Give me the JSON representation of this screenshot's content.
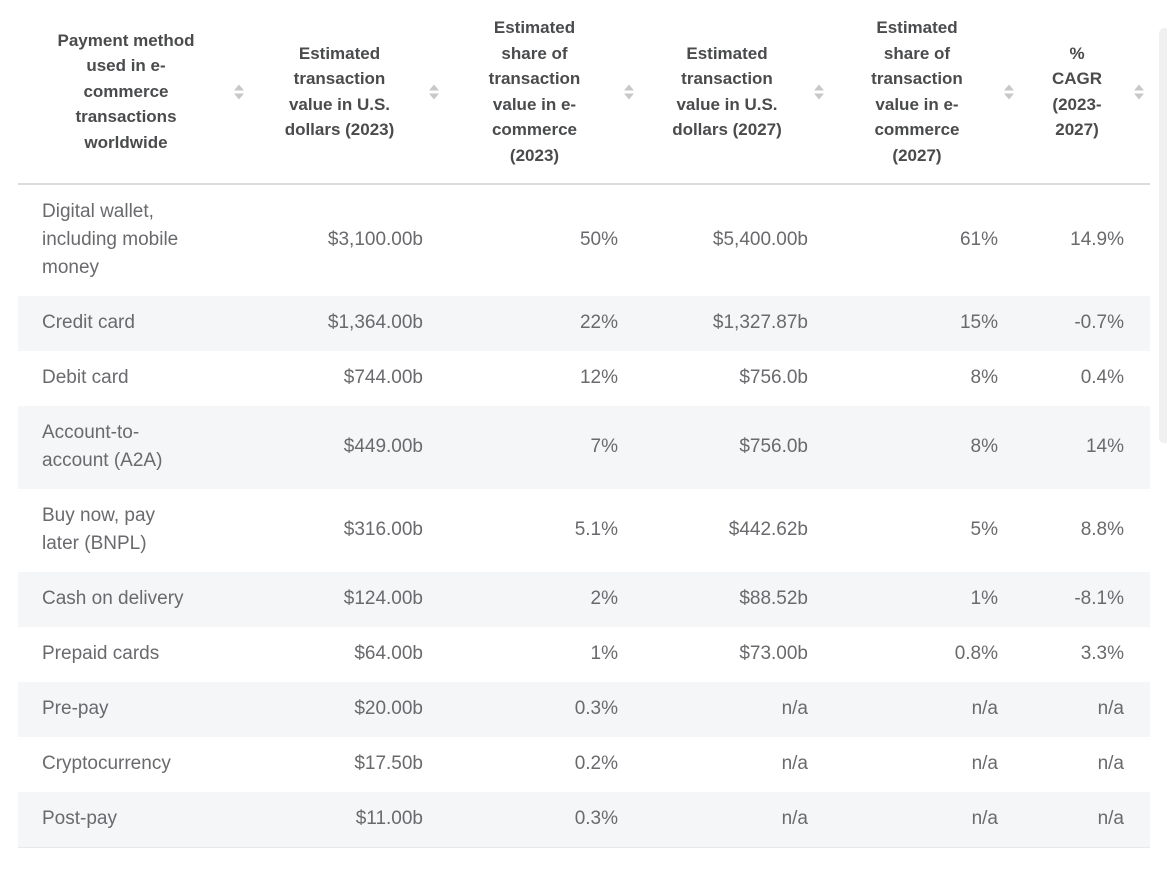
{
  "table": {
    "columns": [
      {
        "label": "Payment method\nused in e-\ncommerce\ntransactions\nworldwide"
      },
      {
        "label": "Estimated\ntransaction\nvalue in U.S.\ndollars (2023)"
      },
      {
        "label": "Estimated\nshare of\ntransaction\nvalue in e-\ncommerce\n(2023)"
      },
      {
        "label": "Estimated\ntransaction\nvalue in U.S.\ndollars (2027)"
      },
      {
        "label": "Estimated\nshare of\ntransaction\nvalue in e-\ncommerce\n(2027)"
      },
      {
        "label": "%\nCAGR\n(2023-\n2027)"
      }
    ],
    "rows": [
      {
        "method": "Digital wallet,\nincluding mobile\nmoney",
        "value_2023": "$3,100.00b",
        "share_2023": "50%",
        "value_2027": "$5,400.00b",
        "share_2027": "61%",
        "cagr": "14.9%"
      },
      {
        "method": "Credit card",
        "value_2023": "$1,364.00b",
        "share_2023": "22%",
        "value_2027": "$1,327.87b",
        "share_2027": "15%",
        "cagr": "-0.7%"
      },
      {
        "method": "Debit card",
        "value_2023": "$744.00b",
        "share_2023": "12%",
        "value_2027": "$756.0b",
        "share_2027": "8%",
        "cagr": "0.4%"
      },
      {
        "method": "Account-to-\naccount (A2A)",
        "value_2023": "$449.00b",
        "share_2023": "7%",
        "value_2027": "$756.0b",
        "share_2027": "8%",
        "cagr": "14%"
      },
      {
        "method": "Buy now, pay\nlater (BNPL)",
        "value_2023": "$316.00b",
        "share_2023": "5.1%",
        "value_2027": "$442.62b",
        "share_2027": "5%",
        "cagr": "8.8%"
      },
      {
        "method": "Cash on delivery",
        "value_2023": "$124.00b",
        "share_2023": "2%",
        "value_2027": "$88.52b",
        "share_2027": "1%",
        "cagr": "-8.1%"
      },
      {
        "method": "Prepaid cards",
        "value_2023": "$64.00b",
        "share_2023": "1%",
        "value_2027": "$73.00b",
        "share_2027": "0.8%",
        "cagr": "3.3%"
      },
      {
        "method": "Pre-pay",
        "value_2023": "$20.00b",
        "share_2023": "0.3%",
        "value_2027": "n/a",
        "share_2027": "n/a",
        "cagr": "n/a"
      },
      {
        "method": "Cryptocurrency",
        "value_2023": "$17.50b",
        "share_2023": "0.2%",
        "value_2027": "n/a",
        "share_2027": "n/a",
        "cagr": "n/a"
      },
      {
        "method": "Post-pay",
        "value_2023": "$11.00b",
        "share_2023": "0.3%",
        "value_2027": "n/a",
        "share_2027": "n/a",
        "cagr": "n/a"
      }
    ]
  },
  "icons": {
    "sort": "sort-up-down-triangles"
  },
  "colors": {
    "header_text": "#4a4b4d",
    "body_text": "#696a6d",
    "row_alt_bg": "#f5f6f8",
    "divider": "#dbdcde",
    "sort_icon": "#c6c8ca",
    "page_bg": "#ffffff",
    "scrollbar": "#f0f0f1"
  }
}
